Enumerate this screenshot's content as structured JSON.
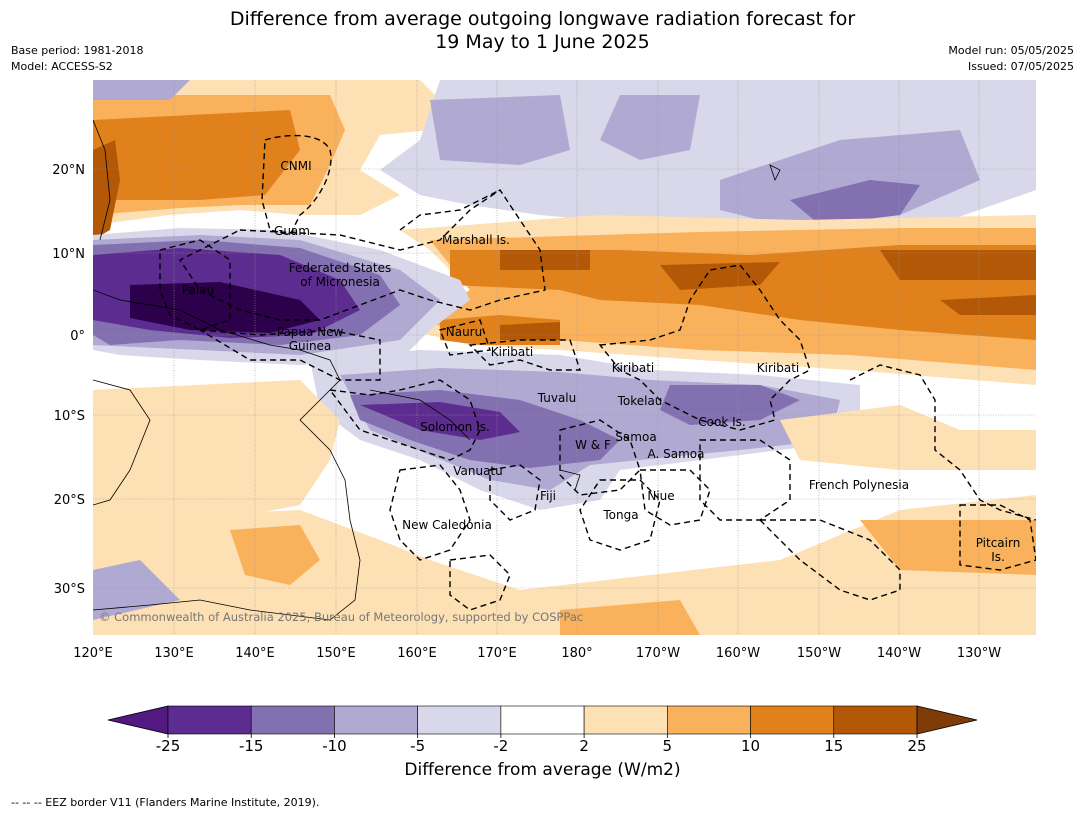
{
  "title": {
    "line1": "Difference from average outgoing longwave radiation forecast for",
    "line2": "19 May to 1 June 2025"
  },
  "meta": {
    "base_period": "Base period: 1981-2018",
    "model": "Model: ACCESS-S2",
    "model_run": "Model run: 05/05/2025",
    "issued": "Issued: 07/05/2025"
  },
  "axes": {
    "lon_labels": [
      "120°E",
      "130°E",
      "140°E",
      "150°E",
      "160°E",
      "170°E",
      "180°",
      "170°W",
      "160°W",
      "150°W",
      "140°W",
      "130°W"
    ],
    "lat_labels": [
      "20°N",
      "10°N",
      "0°",
      "10°S",
      "20°S",
      "30°S"
    ]
  },
  "regions": [
    "CNMI",
    "Guam",
    "Marshall Is.",
    "Federated States of Micronesia",
    "Palau",
    "Nauru",
    "Papua New Guinea",
    "Kiribati",
    "Kiribati",
    "Kiribati",
    "Tuvalu",
    "Tokelau",
    "Cook Is.",
    "Solomon Is.",
    "W & F",
    "Samoa",
    "A. Samoa",
    "Vanuatu",
    "Fiji",
    "Niue",
    "Tonga",
    "New Caledonia",
    "French Polynesia",
    "Pitcairn Is."
  ],
  "copyright": "© Commonwealth of Australia 2025, Bureau of Meteorology, supported by COSPPac",
  "colorbar": {
    "ticks": [
      "-25",
      "-15",
      "-10",
      "-5",
      "-2",
      "2",
      "5",
      "10",
      "15",
      "25"
    ],
    "colors": [
      "#521a80",
      "#5c2c91",
      "#8270b0",
      "#b0a9d2",
      "#d8d8ea",
      "#ffffff",
      "#fde0b3",
      "#f9b15c",
      "#e1811b",
      "#b35806",
      "#7f3b08"
    ],
    "title": "Difference from average (W/m2)"
  },
  "footer": "--  --  -- EEZ border V11 (Flanders Marine Institute, 2019)."
}
